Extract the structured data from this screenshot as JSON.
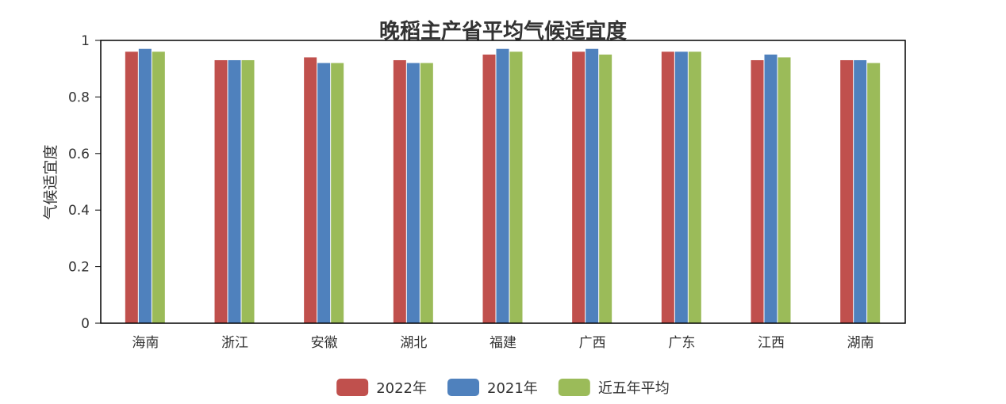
{
  "chart_data": {
    "type": "bar",
    "title": "晚稻主产省平均气候适宜度",
    "xlabel": "",
    "ylabel": "气候适宜度",
    "ylim": [
      0,
      1
    ],
    "yticks": [
      "0",
      "0.2",
      "0.4",
      "0.6",
      "0.8",
      "1"
    ],
    "categories": [
      "海南",
      "浙江",
      "安徽",
      "湖北",
      "福建",
      "广西",
      "广东",
      "江西",
      "湖南"
    ],
    "series": [
      {
        "name": "2022年",
        "color": "#c0504d",
        "values": [
          0.96,
          0.93,
          0.94,
          0.93,
          0.95,
          0.96,
          0.96,
          0.93,
          0.93
        ]
      },
      {
        "name": "2021年",
        "color": "#4f81bd",
        "values": [
          0.97,
          0.93,
          0.92,
          0.92,
          0.97,
          0.97,
          0.96,
          0.95,
          0.93
        ]
      },
      {
        "name": "近五年平均",
        "color": "#9bbb59",
        "values": [
          0.96,
          0.93,
          0.92,
          0.92,
          0.96,
          0.95,
          0.96,
          0.94,
          0.92
        ]
      }
    ],
    "grid": false,
    "legend_position": "bottom"
  }
}
